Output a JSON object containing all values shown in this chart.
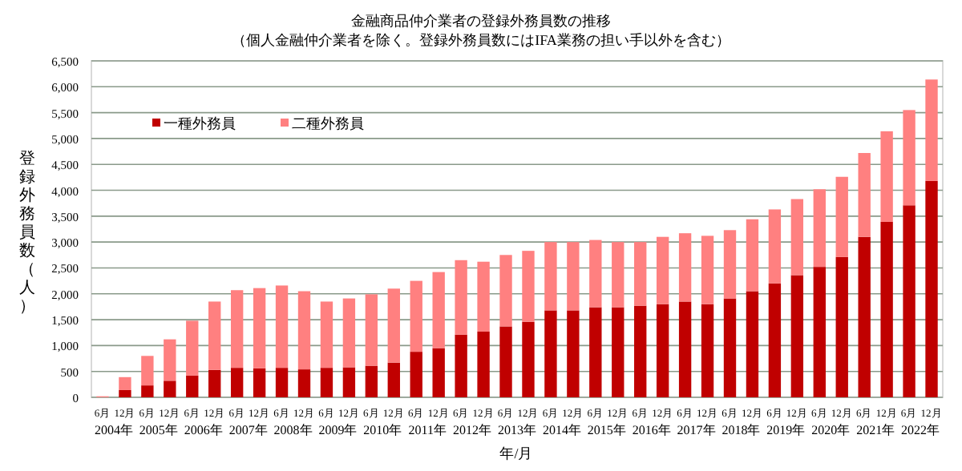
{
  "chart_data": {
    "type": "bar",
    "stacked": true,
    "title": "金融商品仲介業者の登録外務員数の推移",
    "subtitle": "（個人金融仲介業者を除く。登録外務員数にはIFA業務の担い手以外を含む）",
    "xlabel": "年/月",
    "ylabel": "登録外務員数（人）",
    "categories": [
      "6月",
      "12月",
      "6月",
      "12月",
      "6月",
      "12月",
      "6月",
      "12月",
      "6月",
      "12月",
      "6月",
      "12月",
      "6月",
      "12月",
      "6月",
      "12月",
      "6月",
      "12月",
      "6月",
      "12月",
      "6月",
      "12月",
      "6月",
      "12月",
      "6月",
      "12月",
      "6月",
      "12月",
      "6月",
      "12月",
      "6月",
      "12月",
      "6月",
      "12月",
      "6月",
      "12月",
      "6月",
      "12月"
    ],
    "series": [
      {
        "name": "一種外務員",
        "color": "#c00000",
        "values": [
          0,
          140,
          230,
          320,
          420,
          530,
          570,
          560,
          570,
          540,
          570,
          580,
          610,
          670,
          880,
          950,
          1210,
          1270,
          1370,
          1460,
          1680,
          1680,
          1740,
          1740,
          1770,
          1800,
          1850,
          1800,
          1910,
          2050,
          2200,
          2360,
          2520,
          2710,
          3100,
          3390,
          3710,
          4180
        ]
      },
      {
        "name": "二種外務員",
        "color": "#ff8080",
        "values": [
          20,
          250,
          570,
          800,
          1060,
          1320,
          1500,
          1550,
          1590,
          1510,
          1280,
          1330,
          1380,
          1430,
          1370,
          1470,
          1440,
          1350,
          1380,
          1370,
          1320,
          1320,
          1300,
          1260,
          1230,
          1300,
          1320,
          1320,
          1320,
          1390,
          1430,
          1470,
          1500,
          1550,
          1620,
          1750,
          1840,
          1960
        ]
      }
    ],
    "ylim": [
      0,
      6500
    ],
    "yticks": [
      0,
      500,
      {
        "value": 1000,
        "label": "1,000"
      },
      {
        "value": 1500,
        "label": "1,500"
      },
      {
        "value": 2000,
        "label": "2,000"
      },
      {
        "value": 2500,
        "label": "2,500"
      },
      {
        "value": 3000,
        "label": "3,000"
      },
      {
        "value": 3500,
        "label": "3,500"
      },
      {
        "value": 4000,
        "label": "4,000"
      },
      {
        "value": 4500,
        "label": "4,500"
      },
      {
        "value": 5000,
        "label": "5,000"
      },
      {
        "value": 5500,
        "label": "5,500"
      },
      {
        "value": 6000,
        "label": "6,000"
      },
      {
        "value": 6500,
        "label": "6,500"
      }
    ],
    "grid": "y",
    "legend": "top left",
    "annotations": [
      "2004年",
      "2005年",
      "2006年",
      "2007年",
      "2008年",
      "2009年",
      "2010年",
      "2011年",
      "2012年",
      "2013年",
      "2014年",
      "2015年",
      "2016年",
      "2017年",
      "2018年",
      "2019年",
      "2020年",
      "2021年",
      "2022年"
    ]
  }
}
